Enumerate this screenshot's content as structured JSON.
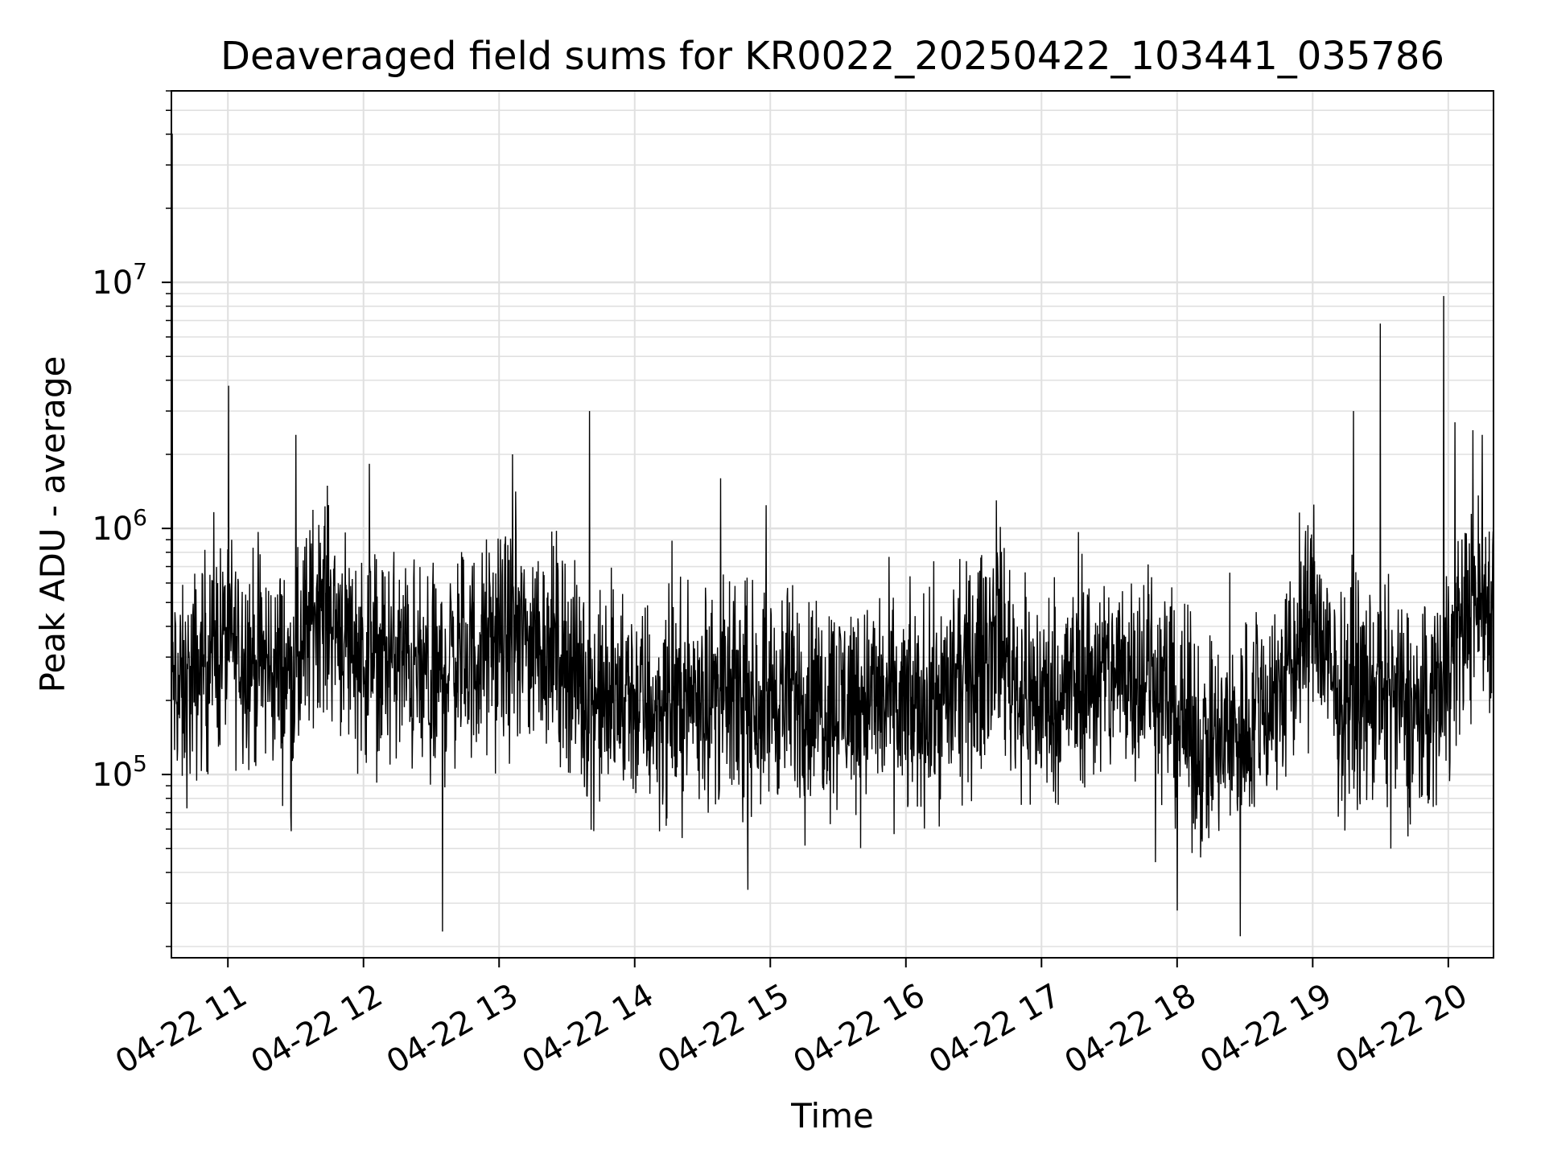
{
  "chart_data": {
    "type": "line",
    "title": "Deaveraged field sums for KR0022_20250422_103441_035786",
    "xlabel": "Time",
    "ylabel": "Peak ADU - average",
    "y_scale": "log",
    "grid": true,
    "grid_minor": true,
    "line_color": "#000000",
    "grid_color": "#e0e0e0",
    "xlim": [
      "2025-04-22 10:35",
      "2025-04-22 20:20"
    ],
    "ylim": [
      18000,
      60000000
    ],
    "x_ticks": [
      {
        "label": "04-22 11",
        "value": "2025-04-22 11:00"
      },
      {
        "label": "04-22 12",
        "value": "2025-04-22 12:00"
      },
      {
        "label": "04-22 13",
        "value": "2025-04-22 13:00"
      },
      {
        "label": "04-22 14",
        "value": "2025-04-22 14:00"
      },
      {
        "label": "04-22 15",
        "value": "2025-04-22 15:00"
      },
      {
        "label": "04-22 16",
        "value": "2025-04-22 16:00"
      },
      {
        "label": "04-22 17",
        "value": "2025-04-22 17:00"
      },
      {
        "label": "04-22 18",
        "value": "2025-04-22 18:00"
      },
      {
        "label": "04-22 19",
        "value": "2025-04-22 19:00"
      },
      {
        "label": "04-22 20",
        "value": "2025-04-22 20:00"
      }
    ],
    "y_ticks": [
      {
        "base": "10",
        "exp": "5",
        "value": 100000
      },
      {
        "base": "10",
        "exp": "6",
        "value": 1000000
      },
      {
        "base": "10",
        "exp": "7",
        "value": 10000000
      }
    ],
    "series": [
      {
        "x": [
          "2025-04-22 10:35",
          "2025-04-22 10:40",
          "2025-04-22 10:50",
          "2025-04-22 11:00",
          "2025-04-22 11:10",
          "2025-04-22 11:20",
          "2025-04-22 11:30",
          "2025-04-22 11:40",
          "2025-04-22 11:50",
          "2025-04-22 12:00",
          "2025-04-22 12:10",
          "2025-04-22 12:20",
          "2025-04-22 12:30",
          "2025-04-22 12:40",
          "2025-04-22 12:50",
          "2025-04-22 13:00",
          "2025-04-22 13:10",
          "2025-04-22 13:20",
          "2025-04-22 13:30",
          "2025-04-22 13:40",
          "2025-04-22 13:50",
          "2025-04-22 14:00",
          "2025-04-22 14:10",
          "2025-04-22 14:20",
          "2025-04-22 14:30",
          "2025-04-22 14:40",
          "2025-04-22 14:50",
          "2025-04-22 15:00",
          "2025-04-22 15:10",
          "2025-04-22 15:20",
          "2025-04-22 15:30",
          "2025-04-22 15:40",
          "2025-04-22 15:50",
          "2025-04-22 16:00",
          "2025-04-22 16:10",
          "2025-04-22 16:20",
          "2025-04-22 16:30",
          "2025-04-22 16:40",
          "2025-04-22 16:50",
          "2025-04-22 17:00",
          "2025-04-22 17:10",
          "2025-04-22 17:20",
          "2025-04-22 17:30",
          "2025-04-22 17:40",
          "2025-04-22 17:50",
          "2025-04-22 18:00",
          "2025-04-22 18:10",
          "2025-04-22 18:20",
          "2025-04-22 18:30",
          "2025-04-22 18:40",
          "2025-04-22 18:50",
          "2025-04-22 19:00",
          "2025-04-22 19:10",
          "2025-04-22 19:20",
          "2025-04-22 19:30",
          "2025-04-22 19:40",
          "2025-04-22 19:50",
          "2025-04-22 20:00",
          "2025-04-22 20:10",
          "2025-04-22 20:20"
        ],
        "y": [
          250000,
          200000,
          300000,
          350000,
          300000,
          270000,
          250000,
          550000,
          400000,
          300000,
          300000,
          280000,
          220000,
          300000,
          300000,
          350000,
          350000,
          350000,
          300000,
          200000,
          200000,
          200000,
          180000,
          200000,
          220000,
          200000,
          200000,
          210000,
          210000,
          200000,
          200000,
          210000,
          200000,
          180000,
          190000,
          220000,
          250000,
          400000,
          220000,
          200000,
          220000,
          250000,
          250000,
          280000,
          250000,
          180000,
          130000,
          130000,
          160000,
          200000,
          250000,
          500000,
          200000,
          220000,
          200000,
          190000,
          170000,
          300000,
          500000,
          500000
        ],
        "peaks": [
          {
            "x": "2025-04-22 10:35",
            "y": 40000000
          },
          {
            "x": "2025-04-22 11:30",
            "y": 2400000
          },
          {
            "x": "2025-04-22 12:35",
            "y": 23000
          },
          {
            "x": "2025-04-22 13:06",
            "y": 2000000
          },
          {
            "x": "2025-04-22 13:40",
            "y": 3000000
          },
          {
            "x": "2025-04-22 14:38",
            "y": 1600000
          },
          {
            "x": "2025-04-22 14:50",
            "y": 34000
          },
          {
            "x": "2025-04-22 16:40",
            "y": 1300000
          },
          {
            "x": "2025-04-22 18:00",
            "y": 28000
          },
          {
            "x": "2025-04-22 18:28",
            "y": 22000
          },
          {
            "x": "2025-04-22 19:18",
            "y": 3000000
          },
          {
            "x": "2025-04-22 19:30",
            "y": 6800000
          },
          {
            "x": "2025-04-22 19:58",
            "y": 8800000
          },
          {
            "x": "2025-04-22 20:03",
            "y": 2700000
          },
          {
            "x": "2025-04-22 20:15",
            "y": 2400000
          }
        ]
      }
    ]
  }
}
